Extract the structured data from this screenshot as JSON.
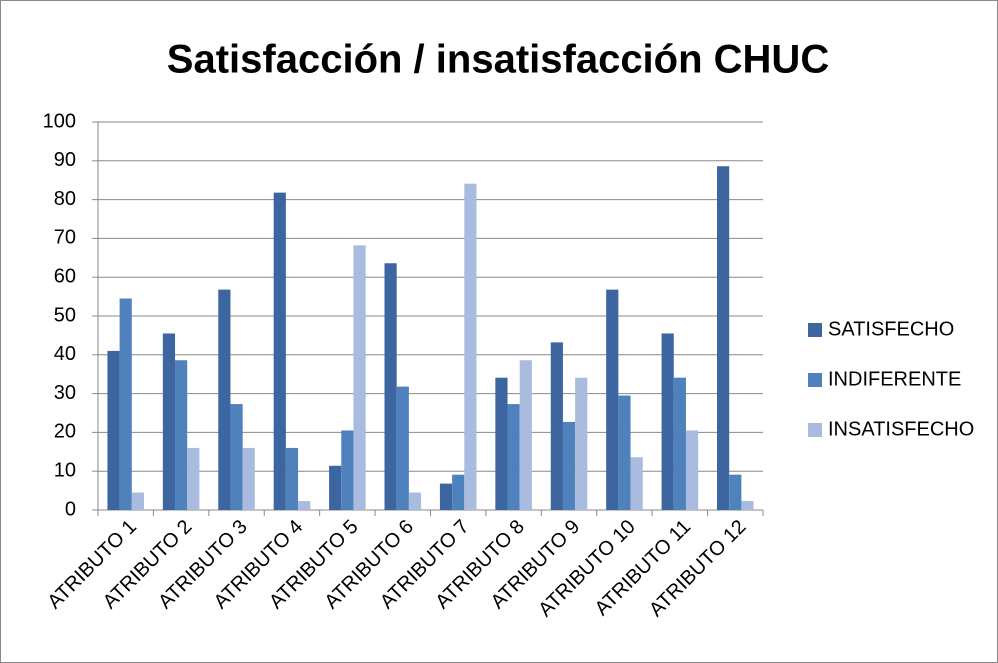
{
  "chart_data": {
    "type": "bar",
    "title": "Satisfacción / insatisfacción CHUC",
    "categories": [
      "ATRIBUTO 1",
      "ATRIBUTO 2",
      "ATRIBUTO 3",
      "ATRIBUTO 4",
      "ATRIBUTO 5",
      "ATRIBUTO 6",
      "ATRIBUTO 7",
      "ATRIBUTO 8",
      "ATRIBUTO 9",
      "ATRIBUTO 10",
      "ATRIBUTO 11",
      "ATRIBUTO 12"
    ],
    "series": [
      {
        "name": "SATISFECHO",
        "color": "#3d66a0",
        "values": [
          41,
          45.5,
          56.8,
          81.8,
          11.4,
          63.6,
          6.8,
          34.1,
          43.2,
          56.8,
          45.5,
          88.6
        ]
      },
      {
        "name": "INDIFERENTE",
        "color": "#4f81bd",
        "values": [
          54.5,
          38.6,
          27.3,
          16,
          20.5,
          31.8,
          9.1,
          27.3,
          22.7,
          29.5,
          34.1,
          9.1
        ]
      },
      {
        "name": "INSATISFECHO",
        "color": "#a9bbdf",
        "values": [
          4.5,
          16,
          16,
          2.3,
          68.2,
          4.5,
          84.1,
          38.6,
          34.1,
          13.6,
          20.5,
          2.3
        ]
      }
    ],
    "ylim": [
      0,
      100
    ],
    "yticks": [
      0,
      10,
      20,
      30,
      40,
      50,
      60,
      70,
      80,
      90,
      100
    ],
    "grid": true,
    "legend": "right"
  }
}
